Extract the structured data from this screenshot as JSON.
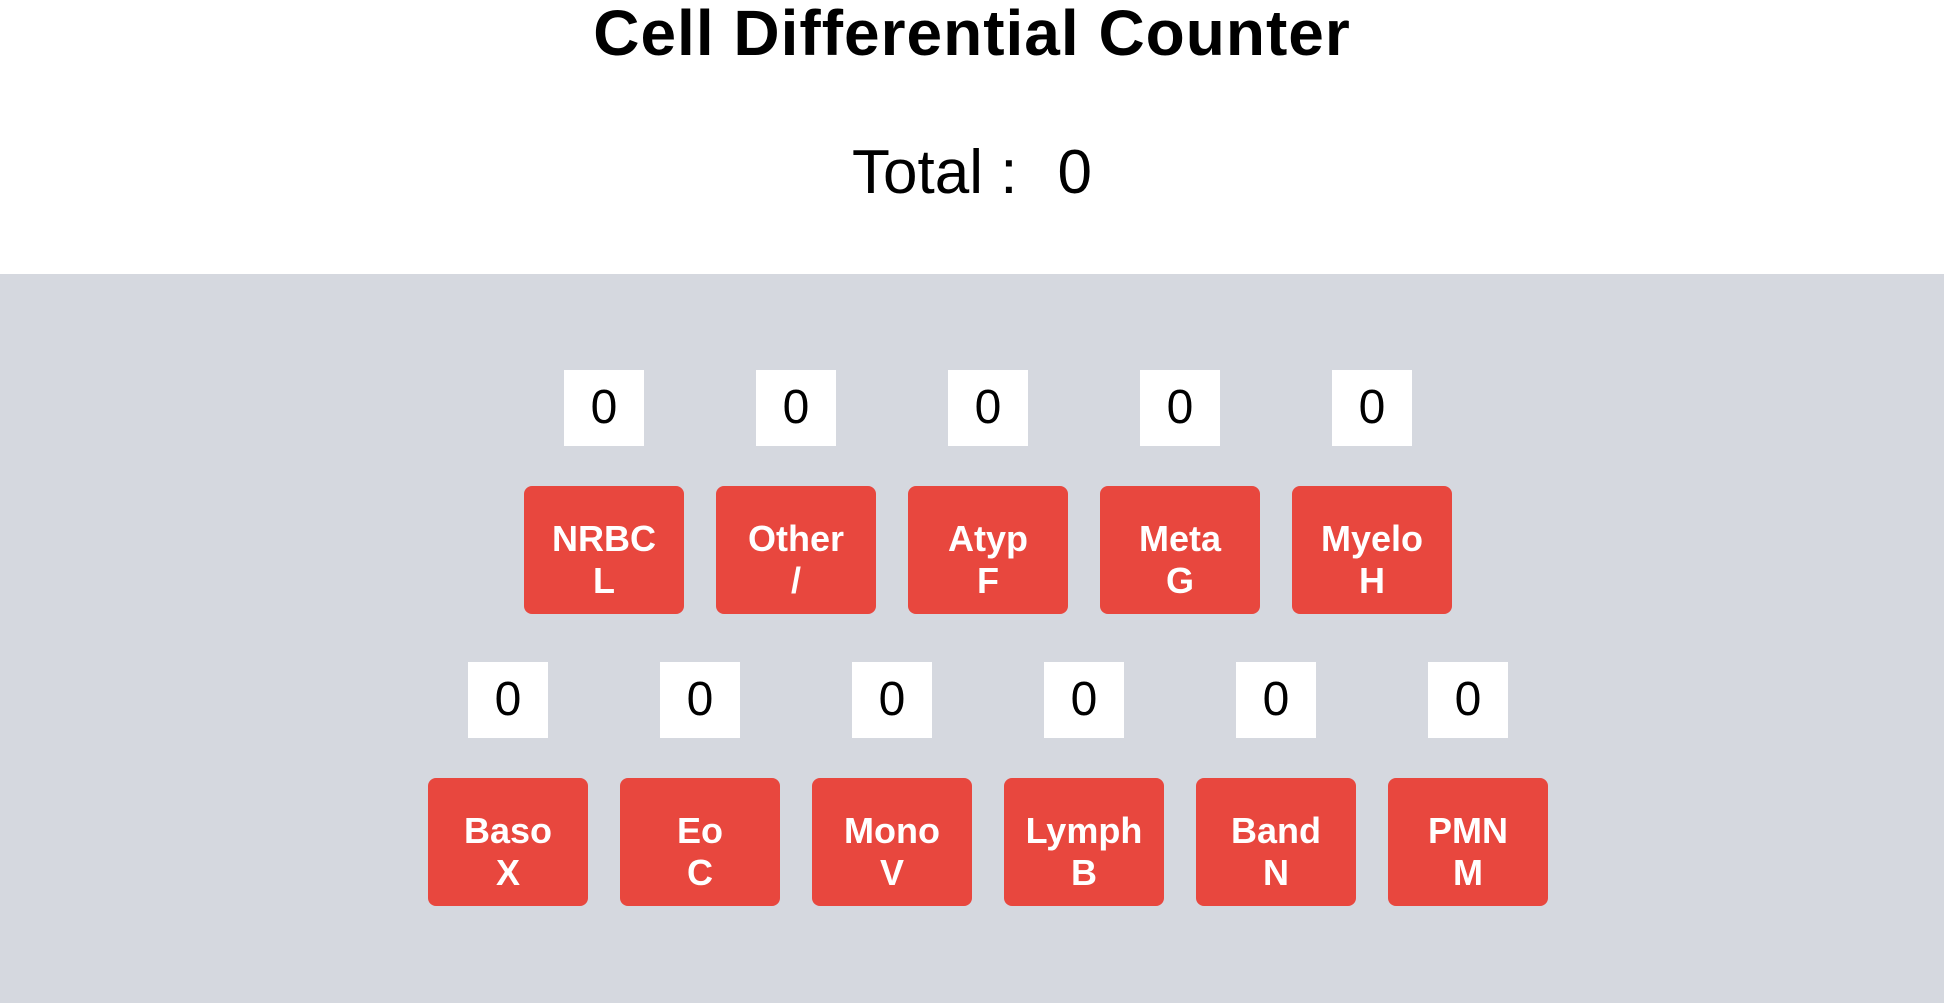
{
  "title": "Cell Differential Counter",
  "total": {
    "label": "Total :",
    "value": "0"
  },
  "colors": {
    "button": "#e8473e",
    "panel": "#d5d8df",
    "count_box": "#ffffff"
  },
  "row1": [
    {
      "name": "NRBC",
      "key": "L",
      "count": "0"
    },
    {
      "name": "Other",
      "key": "/",
      "count": "0"
    },
    {
      "name": "Atyp",
      "key": "F",
      "count": "0"
    },
    {
      "name": "Meta",
      "key": "G",
      "count": "0"
    },
    {
      "name": "Myelo",
      "key": "H",
      "count": "0"
    }
  ],
  "row2": [
    {
      "name": "Baso",
      "key": "X",
      "count": "0"
    },
    {
      "name": "Eo",
      "key": "C",
      "count": "0"
    },
    {
      "name": "Mono",
      "key": "V",
      "count": "0"
    },
    {
      "name": "Lymph",
      "key": "B",
      "count": "0"
    },
    {
      "name": "Band",
      "key": "N",
      "count": "0"
    },
    {
      "name": "PMN",
      "key": "M",
      "count": "0"
    }
  ]
}
